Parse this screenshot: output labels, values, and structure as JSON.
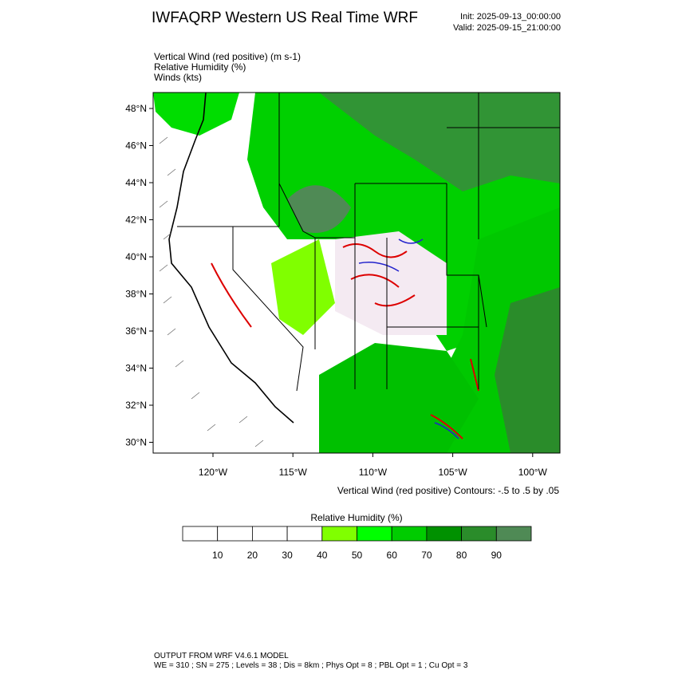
{
  "header": {
    "title": "IWFAQRP Western US Real Time WRF",
    "init": "Init: 2025-09-13_00:00:00",
    "valid": "Valid: 2025-09-15_21:00:00"
  },
  "fields": [
    "Vertical Wind (red positive)   (m s-1)",
    "Relative Humidity   (%)",
    "Winds   (kts)"
  ],
  "map": {
    "lat_labels": [
      "48°N",
      "46°N",
      "44°N",
      "42°N",
      "40°N",
      "38°N",
      "36°N",
      "34°N",
      "32°N",
      "30°N"
    ],
    "lon_labels": [
      "120°W",
      "115°W",
      "110°W",
      "105°W",
      "100°W"
    ],
    "contour_note": "Vertical Wind (red positive) Contours: -.5 to .5 by .05"
  },
  "colorbar": {
    "title": "Relative Humidity  (%)",
    "labels": [
      "10",
      "20",
      "30",
      "40",
      "50",
      "60",
      "70",
      "80",
      "90"
    ],
    "colors": [
      "#ffffff",
      "#ffffff",
      "#ffffff",
      "#ffffff",
      "#80ff00",
      "#00ff00",
      "#00cc00",
      "#009100",
      "#2a8c2a",
      "#4f8a55"
    ]
  },
  "footer": {
    "line1": "OUTPUT FROM WRF V4.6.1 MODEL",
    "line2": "WE = 310 ; SN = 275 ; Levels = 38 ; Dis = 8km ; Phys Opt = 8 ; PBL Opt = 1 ; Cu Opt = 3"
  }
}
